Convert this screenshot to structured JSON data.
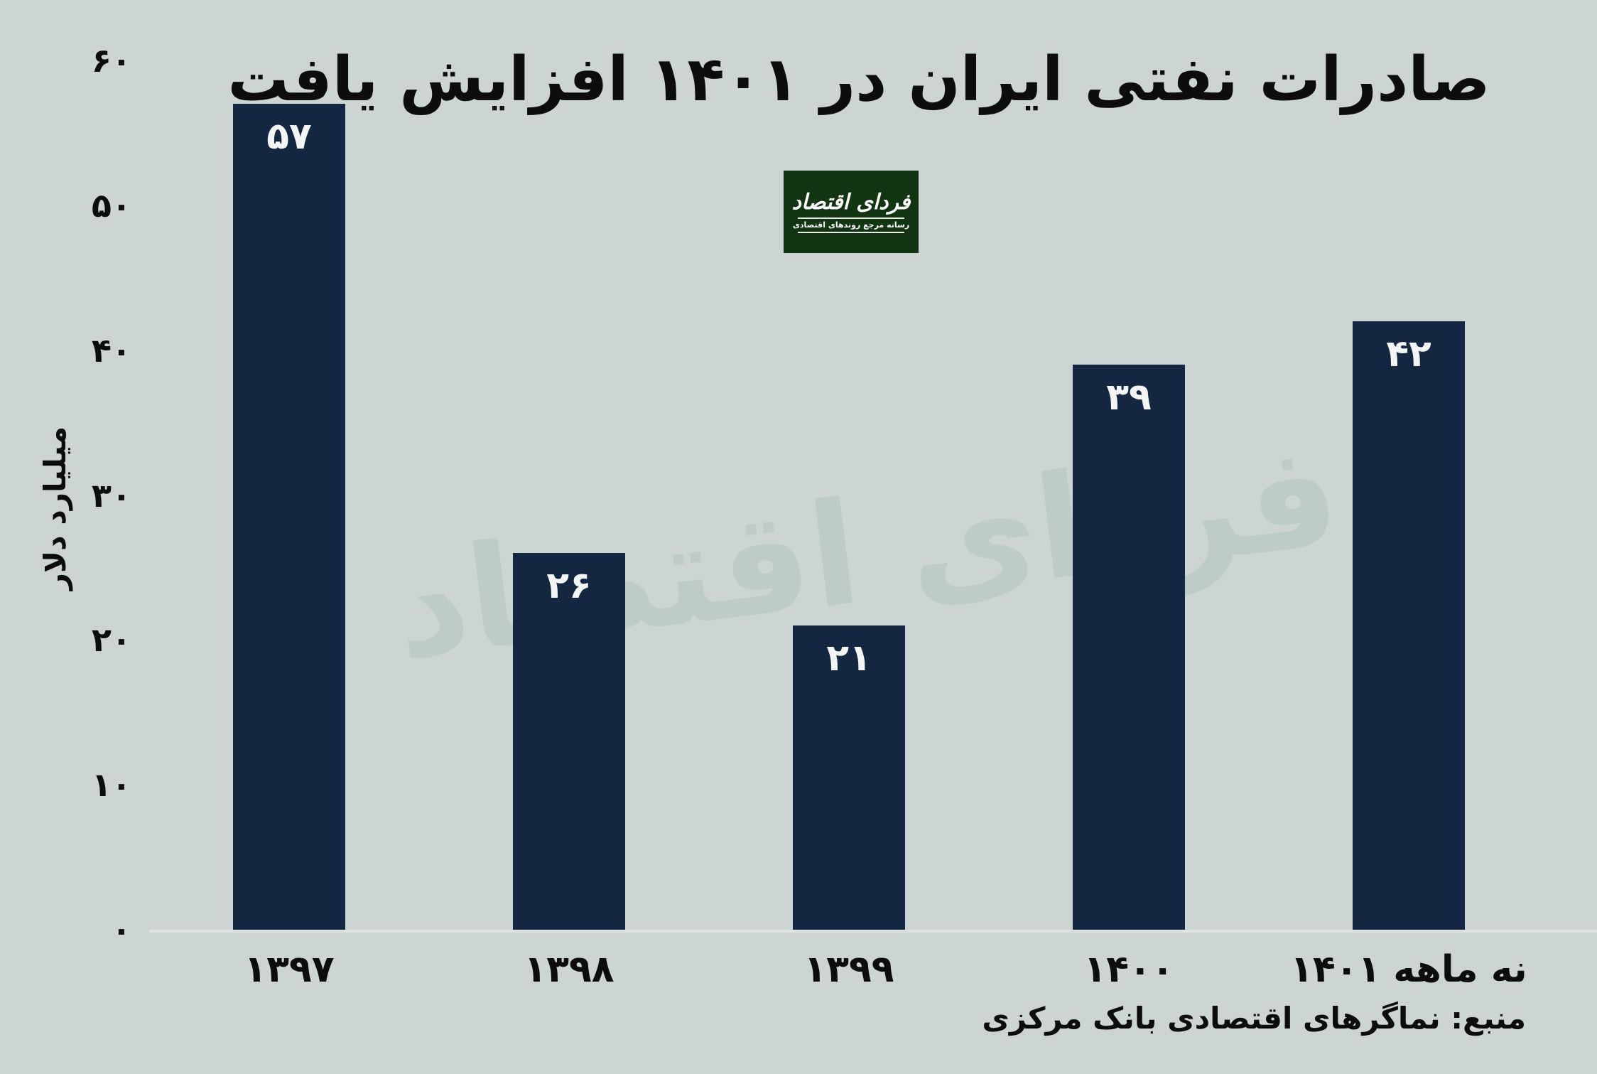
{
  "title": "صادرات نفتی ایران در ۱۴۰۱ افزایش یافت",
  "logo": {
    "wordmark": "فردای اقتصاد",
    "tagline": "رسانه مرجع روندهای اقتصادی",
    "background": "#113511",
    "text_color": "#ffffff"
  },
  "watermark": "فردای اقتصاد",
  "source_note": "منبع: نماگرهای اقتصادی بانک مرکزی",
  "colors": {
    "page_background": "#ccd5d3",
    "bar": "#132642",
    "bar_value_text": "#f3f4f4",
    "text": "#0d0d0d",
    "axis_line": "#dde3e2",
    "watermark": "#b9c9c3"
  },
  "chart_data": {
    "type": "bar",
    "title": "صادرات نفتی ایران در ۱۴۰۱ افزایش یافت",
    "xlabel": "",
    "ylabel": "میلیارد دلار",
    "categories": [
      "۱۳۹۷",
      "۱۳۹۸",
      "۱۳۹۹",
      "۱۴۰۰",
      "نه ماهه ۱۴۰۱"
    ],
    "values": [
      57,
      26,
      21,
      39,
      42
    ],
    "value_labels": [
      "۵۷",
      "۲۶",
      "۲۱",
      "۳۹",
      "۴۲"
    ],
    "ylim": [
      0,
      60
    ],
    "ytick_step": 10,
    "ytick_labels_top_to_bottom": [
      "۶۰",
      "۵۰",
      "۴۰",
      "۳۰",
      "۲۰",
      "۱۰",
      "۰"
    ],
    "grid": false,
    "legend": false
  }
}
